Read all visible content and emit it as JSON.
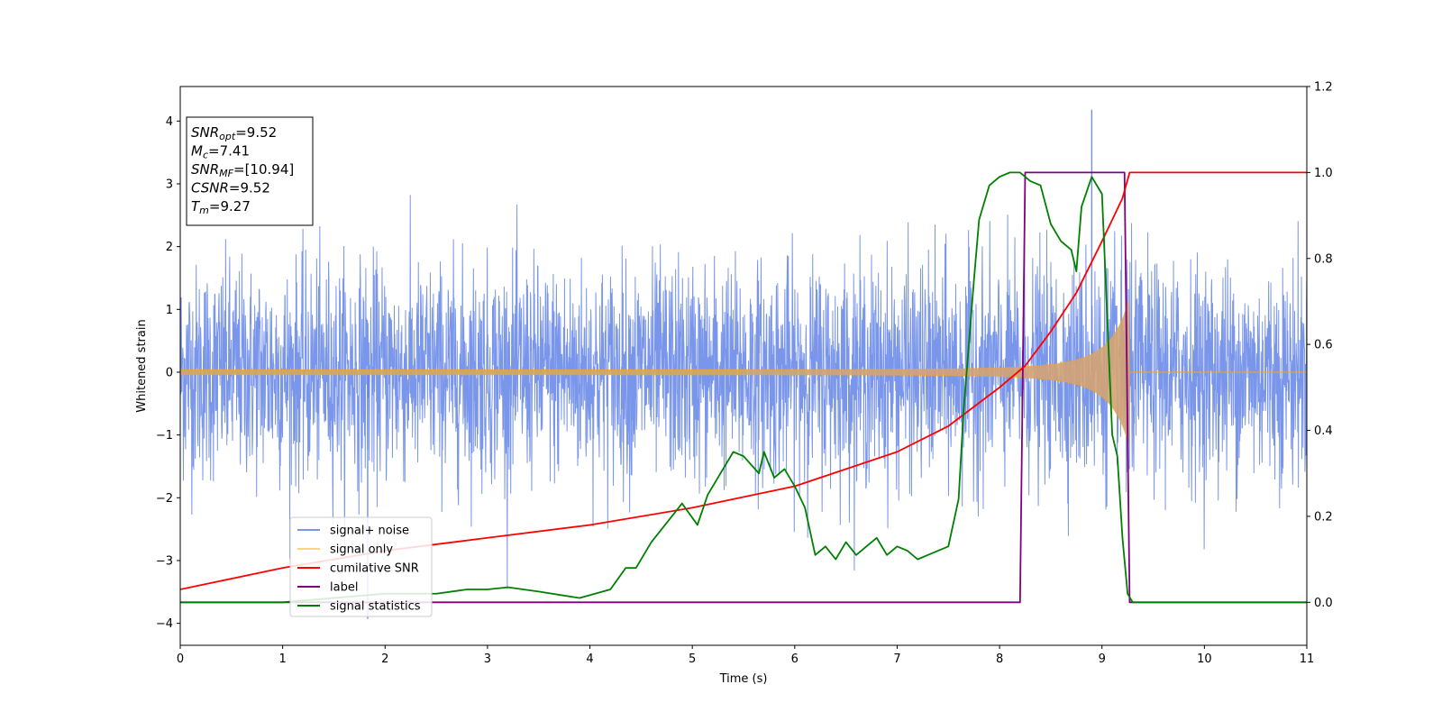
{
  "chart_data": {
    "type": "line",
    "xlabel": "Time (s)",
    "ylabel": "Whitened strain",
    "xlim": [
      0,
      11
    ],
    "ylim": [
      -4.35,
      4.55
    ],
    "y2lim": [
      -0.1,
      1.2
    ],
    "x_ticks": [
      "0",
      "1",
      "2",
      "3",
      "4",
      "5",
      "6",
      "7",
      "8",
      "9",
      "10",
      "11"
    ],
    "y_ticks": [
      "4",
      "3",
      "2",
      "1",
      "0",
      "−1",
      "−2",
      "−3",
      "−4"
    ],
    "y2_ticks": [
      "1.2",
      "1.0",
      "0.8",
      "0.6",
      "0.4",
      "0.2",
      "0.0"
    ],
    "grid": false,
    "legend_position": "lower-left",
    "info_box": {
      "lines": [
        {
          "name": "SNR",
          "sub": "opt",
          "value": "=9.52"
        },
        {
          "name": "M",
          "sub": "c",
          "value": "=7.41"
        },
        {
          "name": "SNR",
          "sub": "MF",
          "value": "=[10.94]"
        },
        {
          "name": "CSNR",
          "sub": "",
          "value": "=9.52"
        },
        {
          "name": "T",
          "sub": "m",
          "value": "=9.27"
        }
      ]
    },
    "series": [
      {
        "name": "signal+ noise",
        "axis": "left",
        "color": "#4169e1",
        "description_stats": {
          "std": 0.85,
          "max_peak": 4.18,
          "min_peak": -3.93
        }
      },
      {
        "name": "signal only",
        "axis": "left",
        "color": "#ffa500",
        "chirp": {
          "start_amp": 0.04,
          "end_amp": 1.2,
          "merger_time": 9.27
        }
      },
      {
        "name": "cumilative SNR",
        "axis": "right",
        "color": "#ff0000",
        "x": [
          0,
          1,
          2,
          3,
          4,
          5,
          6,
          7,
          7.5,
          8,
          8.25,
          8.5,
          8.75,
          9,
          9.1,
          9.2,
          9.27,
          11
        ],
        "y": [
          0.03,
          0.08,
          0.12,
          0.15,
          0.18,
          0.22,
          0.27,
          0.35,
          0.41,
          0.5,
          0.55,
          0.63,
          0.72,
          0.84,
          0.89,
          0.94,
          1.0,
          1.0
        ]
      },
      {
        "name": "label",
        "axis": "right",
        "color": "#800080",
        "x": [
          0,
          8.2,
          8.25,
          9.22,
          9.27,
          11
        ],
        "y": [
          0.0,
          0.0,
          1.0,
          1.0,
          0.0,
          0.0
        ]
      },
      {
        "name": "signal statistics",
        "axis": "right",
        "color": "#008000",
        "x": [
          0,
          1,
          2,
          2.5,
          2.8,
          3,
          3.2,
          3.5,
          3.9,
          4.2,
          4.35,
          4.45,
          4.6,
          4.8,
          4.9,
          5.05,
          5.15,
          5.4,
          5.5,
          5.65,
          5.7,
          5.8,
          5.9,
          6.0,
          6.1,
          6.2,
          6.3,
          6.4,
          6.5,
          6.6,
          6.7,
          6.8,
          6.9,
          7.0,
          7.1,
          7.2,
          7.3,
          7.5,
          7.6,
          7.65,
          7.7,
          7.75,
          7.8,
          7.9,
          8.0,
          8.1,
          8.2,
          8.3,
          8.4,
          8.5,
          8.6,
          8.7,
          8.75,
          8.8,
          8.9,
          9.0,
          9.1,
          9.15,
          9.2,
          9.25,
          9.3,
          11
        ],
        "y": [
          0.0,
          0.0,
          0.02,
          0.02,
          0.03,
          0.03,
          0.035,
          0.025,
          0.01,
          0.03,
          0.08,
          0.08,
          0.14,
          0.2,
          0.23,
          0.18,
          0.25,
          0.35,
          0.34,
          0.3,
          0.35,
          0.29,
          0.31,
          0.27,
          0.22,
          0.11,
          0.13,
          0.1,
          0.14,
          0.11,
          0.13,
          0.15,
          0.11,
          0.13,
          0.12,
          0.1,
          0.11,
          0.13,
          0.24,
          0.45,
          0.6,
          0.75,
          0.89,
          0.97,
          0.99,
          1.0,
          1.0,
          0.98,
          0.97,
          0.88,
          0.84,
          0.82,
          0.77,
          0.92,
          0.99,
          0.95,
          0.39,
          0.34,
          0.15,
          0.02,
          0.0,
          0.0
        ]
      }
    ]
  }
}
